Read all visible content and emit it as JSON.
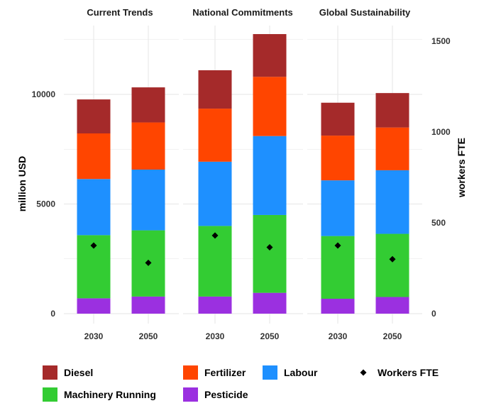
{
  "chart_data": {
    "type": "bar",
    "stacked": true,
    "facets": [
      "Current Trends",
      "National Commitments",
      "Global Sustainability"
    ],
    "x_categories": [
      "2030",
      "2050"
    ],
    "y_left_label": "million USD",
    "y_right_label": "workers FTE",
    "y_left_ticks": [
      0,
      5000,
      10000
    ],
    "y_right_ticks": [
      0,
      500,
      1000,
      1500
    ],
    "y_left_range": [
      0,
      12800
    ],
    "y_right_range": [
      0,
      1600
    ],
    "grid": true,
    "legend_position": "bottom",
    "series": [
      {
        "name": "Pesticide",
        "color": "#9B30E0",
        "values": [
          [
            700,
            780
          ],
          [
            780,
            950
          ],
          [
            680,
            760
          ]
        ]
      },
      {
        "name": "Machinery Running",
        "color": "#33CC33",
        "values": [
          [
            2880,
            3020
          ],
          [
            3220,
            3550
          ],
          [
            2860,
            2880
          ]
        ]
      },
      {
        "name": "Labour",
        "color": "#1E90FF",
        "values": [
          [
            2560,
            2770
          ],
          [
            2930,
            3600
          ],
          [
            2540,
            2900
          ]
        ]
      },
      {
        "name": "Fertilizer",
        "color": "#FF4500",
        "values": [
          [
            2080,
            2150
          ],
          [
            2420,
            2700
          ],
          [
            2040,
            1950
          ]
        ]
      },
      {
        "name": "Diesel",
        "color": "#A52A2A",
        "values": [
          [
            1550,
            1600
          ],
          [
            1750,
            1950
          ],
          [
            1500,
            1570
          ]
        ]
      }
    ],
    "workers_fte": {
      "name": "Workers FTE",
      "values": [
        [
          375,
          280
        ],
        [
          430,
          365
        ],
        [
          375,
          300
        ]
      ]
    }
  },
  "legend": [
    {
      "label": "Diesel",
      "color": "#A52A2A",
      "shape": "square"
    },
    {
      "label": "Fertilizer",
      "color": "#FF4500",
      "shape": "square"
    },
    {
      "label": "Labour",
      "color": "#1E90FF",
      "shape": "square"
    },
    {
      "label": "Workers FTE",
      "color": "#000000",
      "shape": "diamond"
    },
    {
      "label": "Machinery Running",
      "color": "#33CC33",
      "shape": "square"
    },
    {
      "label": "Pesticide",
      "color": "#9B30E0",
      "shape": "square"
    }
  ]
}
